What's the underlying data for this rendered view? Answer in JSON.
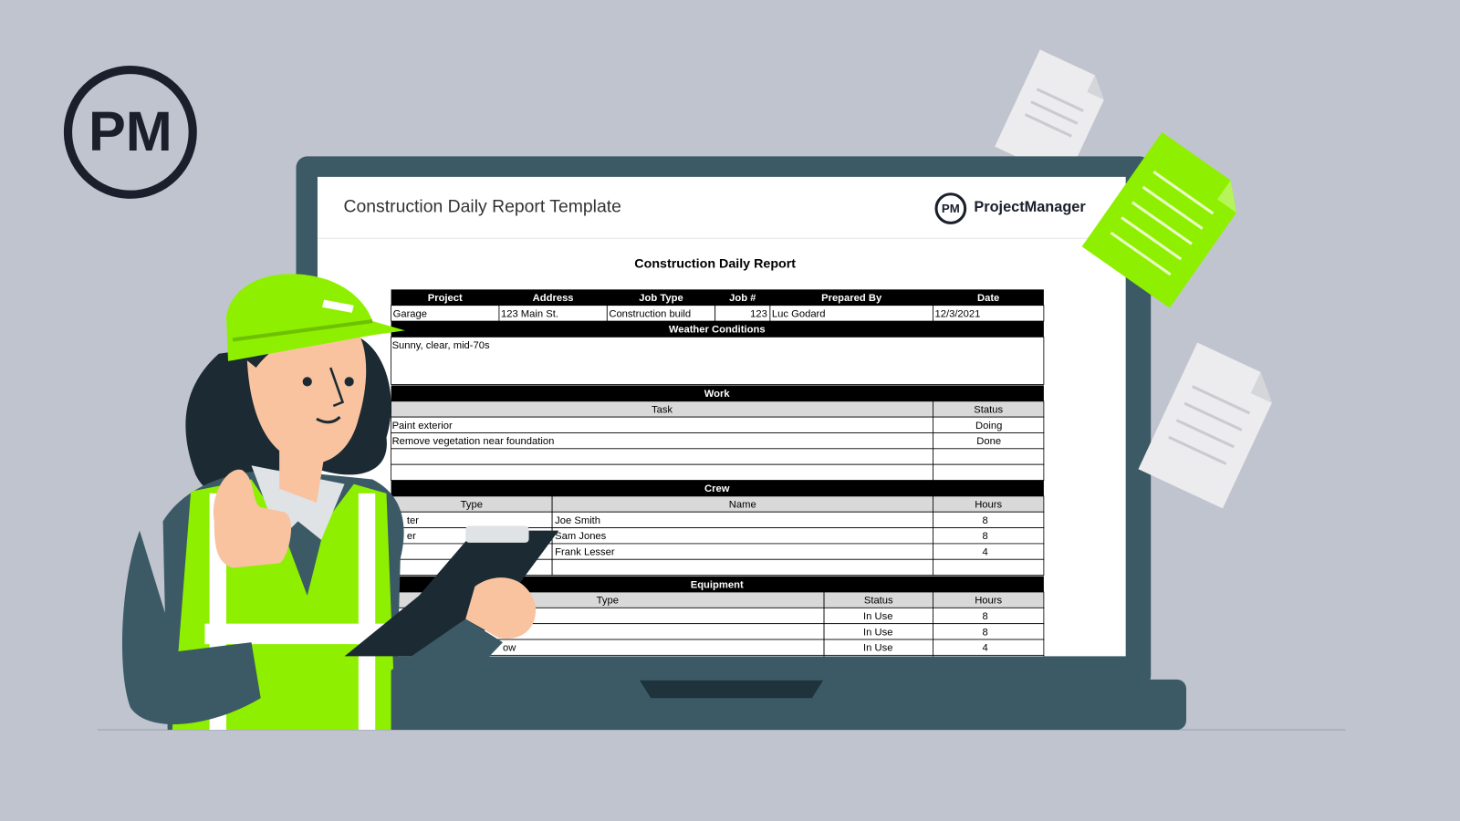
{
  "logo": "PM",
  "header": {
    "title": "Construction Daily Report Template",
    "brand_logo": "PM",
    "brand": "ProjectManager"
  },
  "report": {
    "title": "Construction Daily Report",
    "project": {
      "columns": [
        "Project",
        "Address",
        "Job Type",
        "Job #",
        "Prepared By",
        "Date"
      ],
      "row": [
        "Garage",
        "123 Main St.",
        "Construction build",
        "123",
        "Luc Godard",
        "12/3/2021"
      ]
    },
    "weather": {
      "title": "Weather Conditions",
      "text": "Sunny, clear, mid-70s"
    },
    "work": {
      "title": "Work",
      "columns": [
        "Task",
        "Status"
      ],
      "rows": [
        {
          "task": "Paint exterior",
          "status": "Doing"
        },
        {
          "task": "Remove vegetation near foundation",
          "status": "Done"
        }
      ]
    },
    "crew": {
      "title": "Crew",
      "columns": [
        "Type",
        "Name",
        "Hours"
      ],
      "rows": [
        {
          "type_fragment": "ter",
          "name": "Joe Smith",
          "hours": "8"
        },
        {
          "type_fragment": "er",
          "name": "Sam Jones",
          "hours": "8"
        },
        {
          "name": "Frank Lesser",
          "hours": "4"
        }
      ]
    },
    "equipment": {
      "title": "Equipment",
      "columns": [
        "Type",
        "Status",
        "Hours"
      ],
      "rows": [
        {
          "status": "In Use",
          "hours": "8"
        },
        {
          "status": "In Use",
          "hours": "8"
        },
        {
          "type_fragment": "ow",
          "status": "In Use",
          "hours": "4"
        }
      ]
    }
  }
}
